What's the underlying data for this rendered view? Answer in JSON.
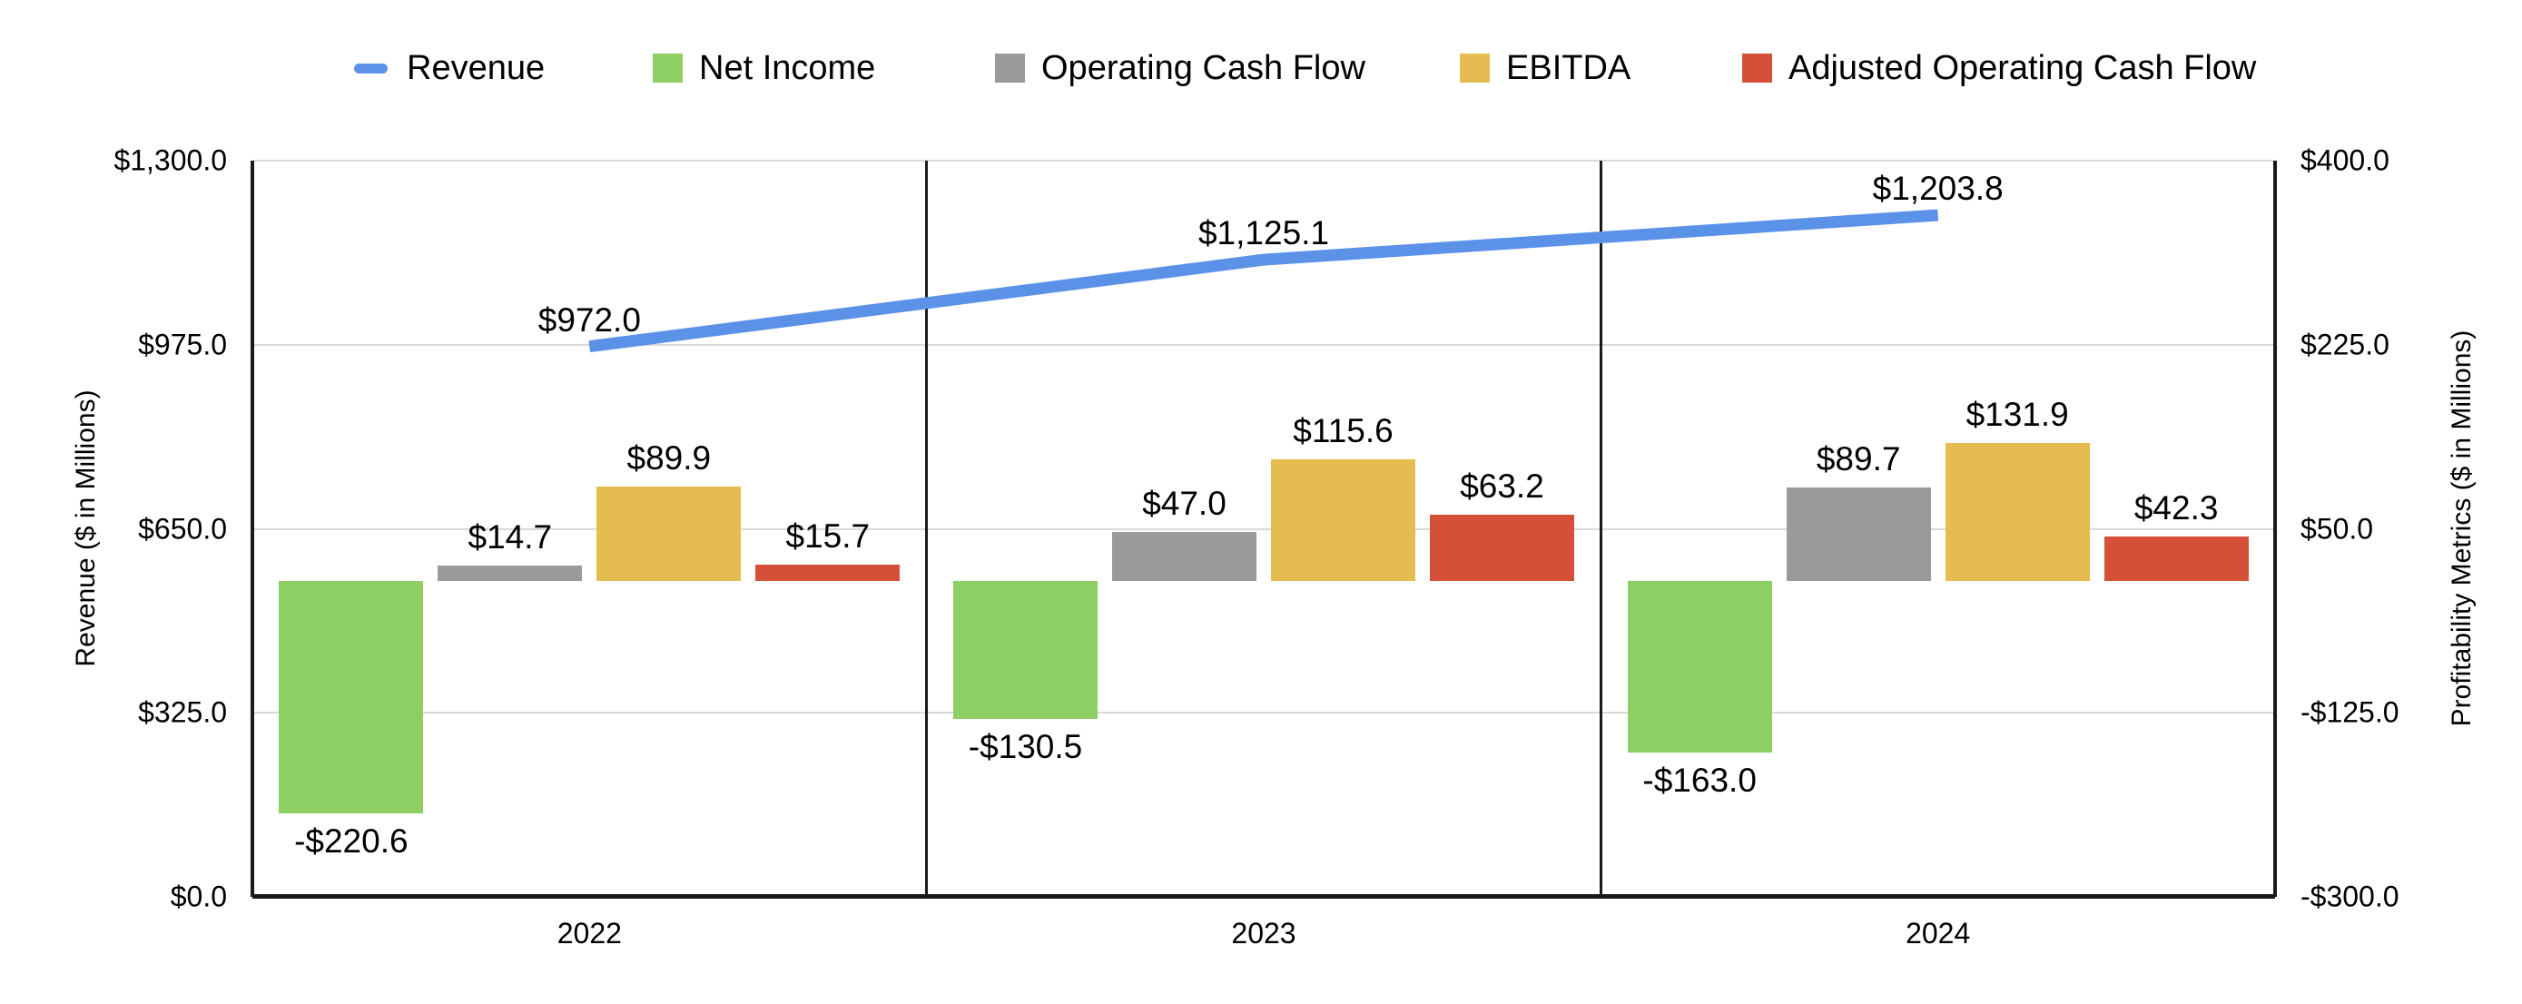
{
  "legend": {
    "items": [
      {
        "label": "Revenue",
        "color": "#5b92e7",
        "marker": "line"
      },
      {
        "label": "Net Income",
        "color": "#8dcf63",
        "marker": "square"
      },
      {
        "label": "Operating Cash Flow",
        "color": "#9a9a9a",
        "marker": "square"
      },
      {
        "label": "EBITDA",
        "color": "#e5bc50",
        "marker": "square"
      },
      {
        "label": "Adjusted Operating Cash Flow",
        "color": "#d55038",
        "marker": "square"
      }
    ]
  },
  "left_axis": {
    "title": "Revenue ($ in Millions)",
    "ticks": [
      {
        "label": "$1,300.0",
        "value": 1300
      },
      {
        "label": "$975.0",
        "value": 975
      },
      {
        "label": "$650.0",
        "value": 650
      },
      {
        "label": "$325.0",
        "value": 325
      },
      {
        "label": "$0.0",
        "value": 0
      }
    ]
  },
  "right_axis": {
    "title": "Profitability Metrics ($ in Millions)",
    "ticks": [
      {
        "label": "$400.0",
        "value": 400
      },
      {
        "label": "$225.0",
        "value": 225
      },
      {
        "label": "$50.0",
        "value": 50
      },
      {
        "label": "-$125.0",
        "value": -125
      },
      {
        "label": "-$300.0",
        "value": -300
      }
    ]
  },
  "chart_data": {
    "type": "combo-bar-line",
    "title": "",
    "categories": [
      "2022",
      "2023",
      "2024"
    ],
    "bar_axis": "right",
    "left_axis_range": [
      0,
      1300
    ],
    "right_axis_range": [
      -300,
      400
    ],
    "grid": true,
    "legend_position": "top",
    "series": [
      {
        "name": "Net Income",
        "color": "#8dcf63",
        "values": [
          -220.6,
          -130.5,
          -163.0
        ],
        "labels": [
          "-$220.6",
          "-$130.5",
          "-$163.0"
        ]
      },
      {
        "name": "Operating Cash Flow",
        "color": "#9a9a9a",
        "values": [
          14.7,
          47.0,
          89.7
        ],
        "labels": [
          "$14.7",
          "$47.0",
          "$89.7"
        ]
      },
      {
        "name": "EBITDA",
        "color": "#e5bc50",
        "values": [
          89.9,
          115.6,
          131.9
        ],
        "labels": [
          "$89.9",
          "$115.6",
          "$131.9"
        ]
      },
      {
        "name": "Adjusted Operating Cash Flow",
        "color": "#d55038",
        "values": [
          15.7,
          63.2,
          42.3
        ],
        "labels": [
          "$15.7",
          "$63.2",
          "$42.3"
        ]
      }
    ],
    "line_series": {
      "name": "Revenue",
      "color": "#5b92e7",
      "axis": "left",
      "values": [
        972.0,
        1125.1,
        1203.8
      ],
      "labels": [
        "$972.0",
        "$1,125.1",
        "$1,203.8"
      ]
    }
  }
}
